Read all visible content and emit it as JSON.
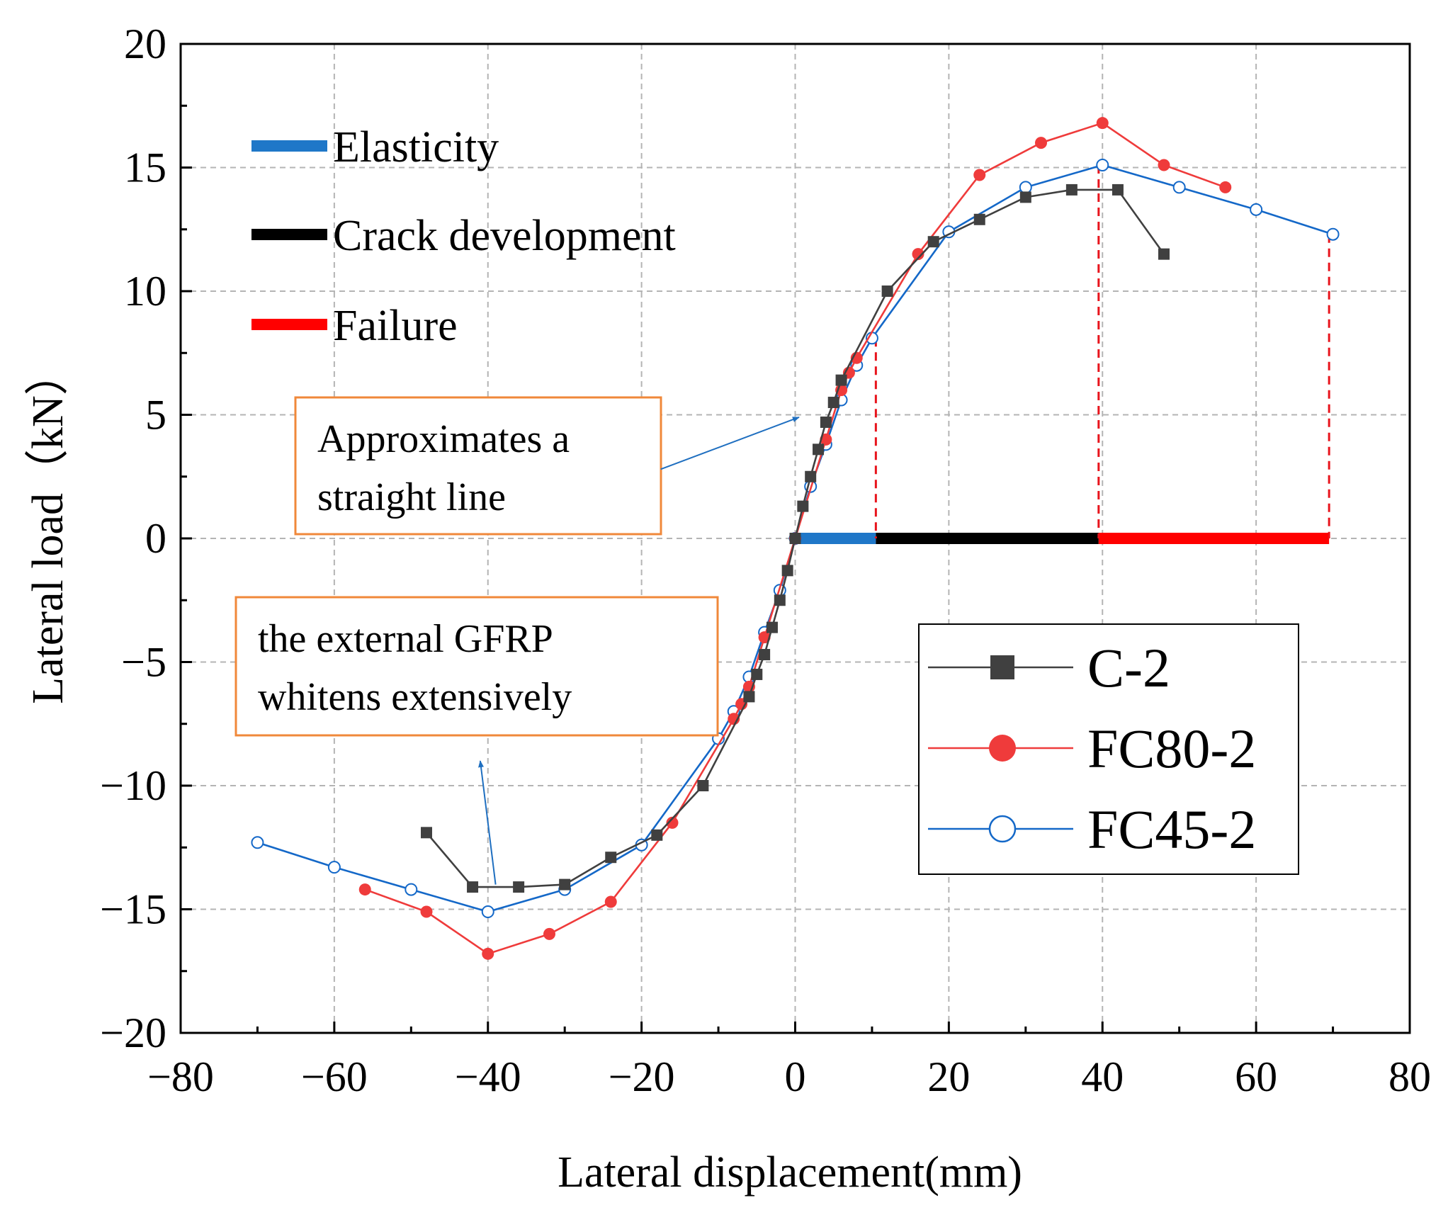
{
  "chart_data": {
    "type": "line",
    "xlabel": "Lateral displacement(mm)",
    "ylabel": "Lateral load（kN）",
    "xlim": [
      -80,
      80
    ],
    "ylim": [
      -20,
      20
    ],
    "xticks": [
      -80,
      -60,
      -40,
      -20,
      0,
      20,
      40,
      60,
      80
    ],
    "yticks": [
      -20,
      -15,
      -10,
      -5,
      0,
      5,
      10,
      15,
      20
    ],
    "xtick_labels": [
      "−80",
      "−60",
      "−40",
      "−20",
      "0",
      "20",
      "40",
      "60",
      "80"
    ],
    "ytick_labels": [
      "−20",
      "−15",
      "−10",
      "−5",
      "0",
      "5",
      "10",
      "15",
      "20"
    ],
    "grid": true,
    "series": [
      {
        "name": "C-2",
        "color": "#404040",
        "marker": "square",
        "x": [
          -48,
          -42,
          -36,
          -30,
          -24,
          -18,
          -12,
          -6,
          -5,
          -4,
          -3,
          -2,
          -1,
          0,
          1,
          2,
          3,
          4,
          5,
          6,
          12,
          18,
          24,
          30,
          36,
          42,
          48
        ],
        "y": [
          -11.9,
          -14.1,
          -14.1,
          -14.0,
          -12.9,
          -12.0,
          -10.0,
          -6.4,
          -5.5,
          -4.7,
          -3.6,
          -2.5,
          -1.3,
          0,
          1.3,
          2.5,
          3.6,
          4.7,
          5.5,
          6.4,
          10.0,
          12.0,
          12.9,
          13.8,
          14.1,
          14.1,
          11.5
        ]
      },
      {
        "name": "FC80-2",
        "color": "#ef3b3b",
        "marker": "circle",
        "x": [
          -56,
          -48,
          -40,
          -32,
          -24,
          -16,
          -8,
          -7,
          -6,
          -4,
          0,
          4,
          6,
          7,
          8,
          16,
          24,
          32,
          40,
          48,
          56
        ],
        "y": [
          -14.2,
          -15.1,
          -16.8,
          -16.0,
          -14.7,
          -11.5,
          -7.3,
          -6.7,
          -6.0,
          -4.0,
          0,
          4.0,
          6.0,
          6.7,
          7.3,
          11.5,
          14.7,
          16.0,
          16.8,
          15.1,
          14.2
        ]
      },
      {
        "name": "FC45-2",
        "color": "#1468c8",
        "marker": "open-circle",
        "x": [
          -70,
          -60,
          -50,
          -40,
          -30,
          -20,
          -10,
          -8,
          -6,
          -4,
          -2,
          0,
          2,
          4,
          6,
          8,
          10,
          20,
          30,
          40,
          50,
          60,
          70
        ],
        "y": [
          -12.3,
          -13.3,
          -14.2,
          -15.1,
          -14.2,
          -12.4,
          -8.1,
          -7.0,
          -5.6,
          -3.8,
          -2.1,
          0,
          2.1,
          3.8,
          5.6,
          7.0,
          8.1,
          12.4,
          14.2,
          15.1,
          14.2,
          13.3,
          12.3
        ]
      }
    ],
    "stages": [
      {
        "name": "Elasticity",
        "color": "#1f77c8",
        "x_start": 0,
        "x_end": 10.5
      },
      {
        "name": "Crack development",
        "color": "#000000",
        "x_start": 10.5,
        "x_end": 39.5
      },
      {
        "name": "Failure",
        "color": "#ff0000",
        "x_start": 39.5,
        "x_end": 69.5
      }
    ],
    "stage_boundaries": [
      {
        "x": 10.5,
        "y_top": 8.1
      },
      {
        "x": 39.5,
        "y_top": 15.1
      },
      {
        "x": 69.5,
        "y_top": 12.3
      }
    ],
    "annotations": [
      {
        "lines": [
          "Approximates a",
          "straight line"
        ],
        "arrow_from": [
          -17.5,
          2.8
        ],
        "arrow_to": [
          0.5,
          4.9
        ]
      },
      {
        "lines": [
          "the external GFRP",
          "whitens extensively"
        ],
        "arrow_from": [
          -39,
          -14.0
        ],
        "arrow_to": [
          -41,
          -9.0
        ]
      }
    ],
    "legend": {
      "position": "center-right"
    }
  }
}
